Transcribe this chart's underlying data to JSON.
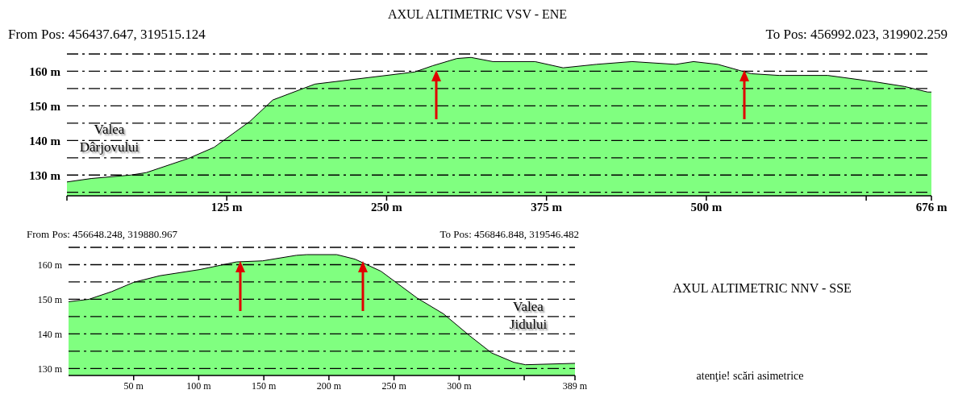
{
  "chart_data": [
    {
      "type": "area",
      "title": "AXUL ALTIMETRIC VSV - ENE",
      "annotations": [
        "From Pos: 456437.647, 319515.124",
        "To Pos: 456992.023, 319902.259",
        "Valea Dârjovului"
      ],
      "x": [
        0,
        19,
        50,
        62,
        95,
        115,
        143,
        161,
        186,
        194,
        272,
        286,
        305,
        316,
        333,
        366,
        388,
        414,
        442,
        476,
        490,
        509,
        535,
        557,
        595,
        631,
        655,
        673,
        676
      ],
      "series": [
        {
          "color": "#80ff80",
          "values": [
            128,
            129,
            130,
            130.7,
            134.8,
            138,
            145.5,
            151.7,
            155.2,
            156.3,
            159.8,
            161.6,
            163.7,
            164,
            162.8,
            162.8,
            161,
            162,
            162.8,
            162,
            162.8,
            162,
            159.3,
            158.8,
            158.8,
            157,
            155.6,
            154,
            154
          ]
        }
      ],
      "xlim": [
        0,
        676
      ],
      "xticks": [
        {
          "value": 0,
          "label": null
        },
        {
          "value": 125,
          "label": "125 m"
        },
        {
          "value": 250,
          "label": "250 m"
        },
        {
          "value": 375,
          "label": "375 m"
        },
        {
          "value": 500,
          "label": "500 m"
        },
        {
          "value": 625,
          "label": null
        },
        {
          "value": 676,
          "label": "676 m"
        }
      ],
      "ylim": [
        124,
        165
      ],
      "yticks": [
        {
          "value": 125,
          "label": null
        },
        {
          "value": 130,
          "label": "130 m"
        },
        {
          "value": 135,
          "label": null
        },
        {
          "value": 140,
          "label": "140 m"
        },
        {
          "value": 145,
          "label": null
        },
        {
          "value": 150,
          "label": "150 m"
        },
        {
          "value": 155,
          "label": null
        },
        {
          "value": 160,
          "label": "160 m"
        },
        {
          "value": 165,
          "label": null
        }
      ],
      "grid": "y",
      "legend": false
    },
    {
      "type": "area",
      "annotations": [
        "From Pos: 456648.248, 319880.967",
        "To Pos: 456846.848, 319546.482",
        "Valea Jidului"
      ],
      "x": [
        0,
        15.6,
        33,
        50,
        70,
        101,
        129,
        149,
        175,
        183,
        206,
        220,
        240,
        268,
        288,
        308,
        325,
        342,
        351,
        389
      ],
      "series": [
        {
          "color": "#80ff80",
          "values": [
            149.3,
            150,
            152.2,
            154.9,
            156.8,
            158.6,
            160.8,
            161.1,
            162.7,
            162.9,
            162.9,
            161.6,
            158.1,
            150.3,
            145.8,
            139.5,
            134.5,
            131.8,
            131.1,
            131.5
          ]
        }
      ],
      "xlim": [
        0,
        389
      ],
      "xticks": [
        {
          "value": 50,
          "label": "50 m"
        },
        {
          "value": 100,
          "label": "100 m"
        },
        {
          "value": 150,
          "label": "150 m"
        },
        {
          "value": 200,
          "label": "200 m"
        },
        {
          "value": 250,
          "label": "250 m"
        },
        {
          "value": 300,
          "label": "300 m"
        },
        {
          "value": 350,
          "label": null
        },
        {
          "value": 389,
          "label": "389 m"
        }
      ],
      "ylim": [
        128,
        165
      ],
      "yticks": [
        {
          "value": 130,
          "label": "130 m"
        },
        {
          "value": 135,
          "label": null
        },
        {
          "value": 140,
          "label": "140 m"
        },
        {
          "value": 145,
          "label": null
        },
        {
          "value": 150,
          "label": "150 m"
        },
        {
          "value": 155,
          "label": null
        },
        {
          "value": 160,
          "label": "160 m"
        },
        {
          "value": 165,
          "label": null
        }
      ],
      "grid": "y",
      "legend": false
    },
    {
      "type": "other",
      "title": "AXUL ALTIMETRIC NNV - SSE",
      "annotations": [
        "atenţie! scări asimetrice"
      ]
    }
  ]
}
